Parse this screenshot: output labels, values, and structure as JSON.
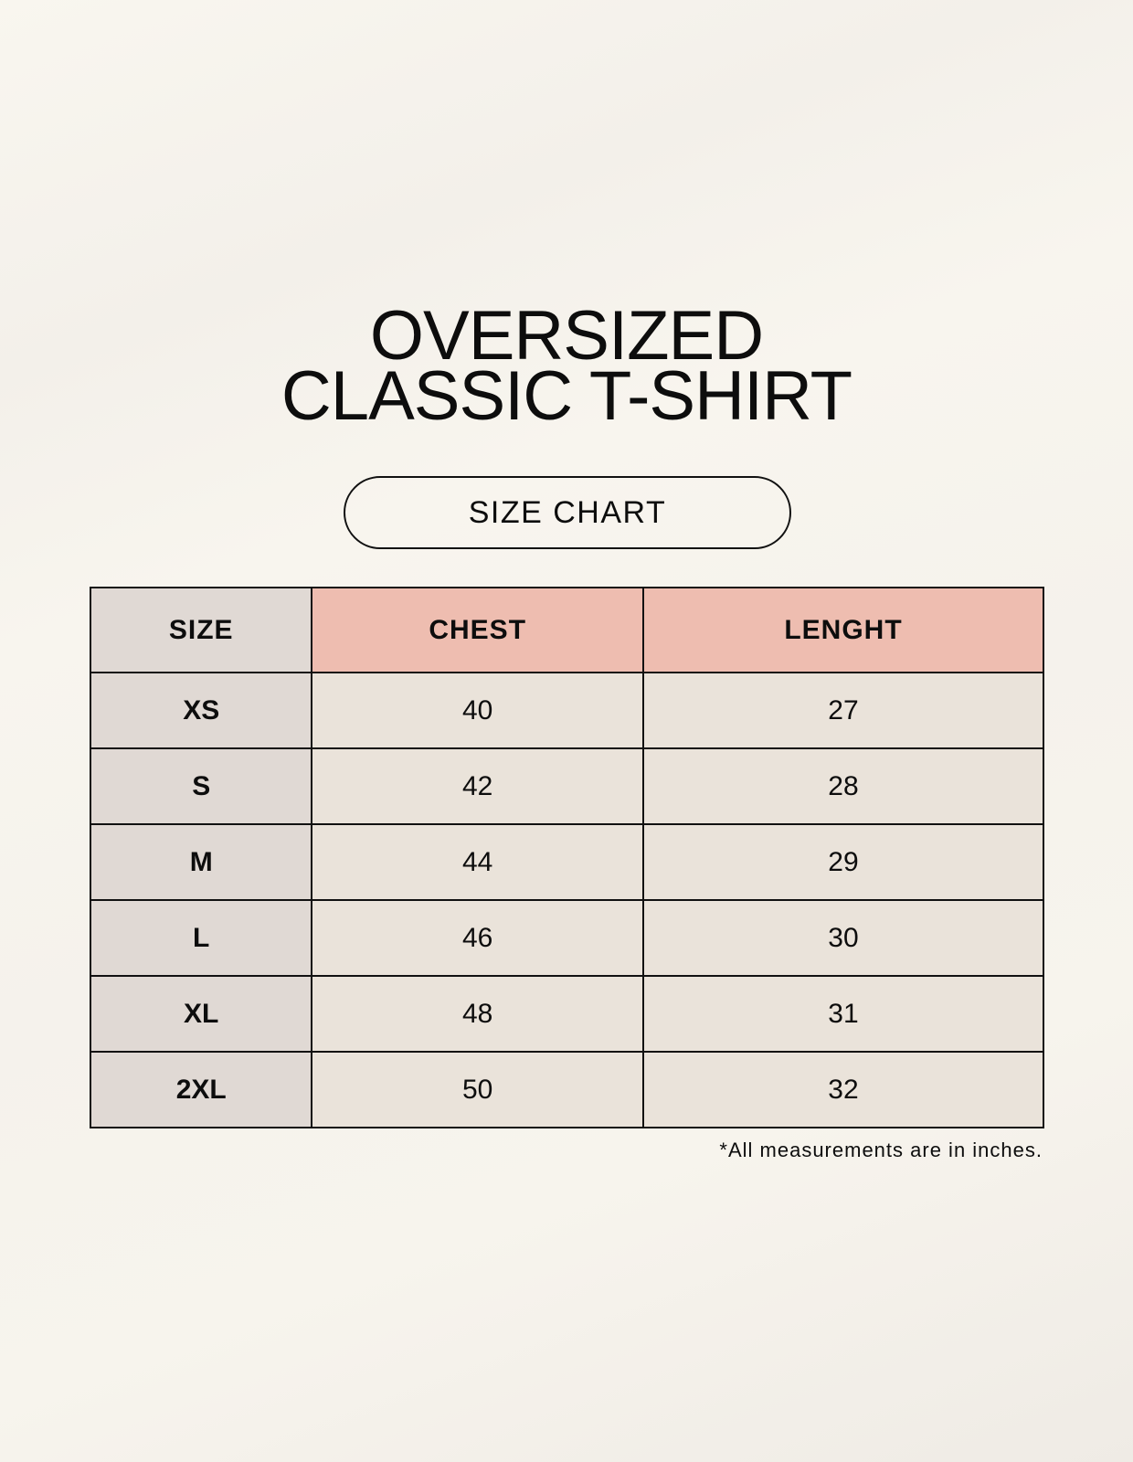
{
  "title": {
    "line1": "OVERSIZED",
    "line2": "CLASSIC T-SHIRT"
  },
  "badge": "SIZE CHART",
  "table": {
    "headers": [
      "SIZE",
      "CHEST",
      "LENGHT"
    ],
    "rows": [
      [
        "XS",
        "40",
        "27"
      ],
      [
        "S",
        "42",
        "28"
      ],
      [
        "M",
        "44",
        "29"
      ],
      [
        "L",
        "46",
        "30"
      ],
      [
        "XL",
        "48",
        "31"
      ],
      [
        "2XL",
        "50",
        "32"
      ]
    ]
  },
  "footnote": "*All measurements are in inches.",
  "colors": {
    "size_column": "#e0d9d4",
    "header_accent": "#eebdb0",
    "value_cells": "#eae3da"
  }
}
